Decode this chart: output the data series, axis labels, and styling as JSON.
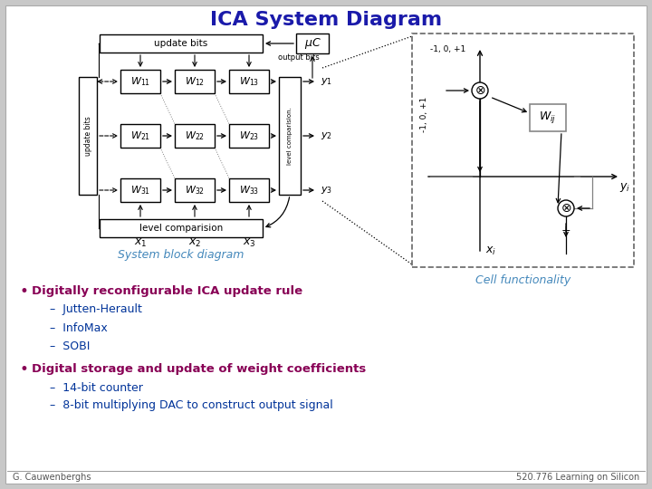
{
  "title": "ICA System Diagram",
  "title_color": "#1a1aaa",
  "title_fontsize": 16,
  "bg_color": "#c8c8c8",
  "slide_bg": "#ffffff",
  "caption_left": "System block diagram",
  "caption_right": "Cell functionality",
  "caption_color": "#4488bb",
  "caption_fontsize": 9,
  "bullet1_bold": "Digitally reconfigurable ICA update rule",
  "bullet1_subs": [
    "Jutten-Herault",
    "InfoMax",
    "SOBI"
  ],
  "bullet2_bold": "Digital storage and update of weight coefficients",
  "bullet2_subs": [
    "14-bit counter",
    "8-bit multiplying DAC to construct output signal"
  ],
  "bullet_color": "#880055",
  "sub_color": "#003399",
  "footer_left": "G. Cauwenberghs",
  "footer_right": "520.776 Learning on Silicon",
  "footer_color": "#555555",
  "footer_fontsize": 7
}
